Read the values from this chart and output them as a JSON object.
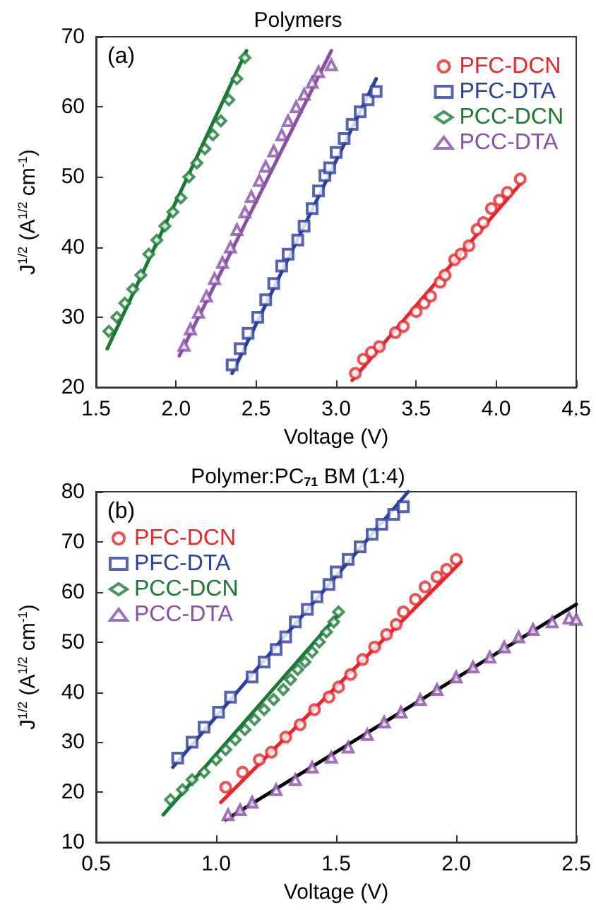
{
  "chart_data": [
    {
      "type": "scatter",
      "title": "Polymers",
      "xlabel": "Voltage (V)",
      "ylabel": "J$^{1/2}$ (A$^{1/2}$ cm$^{-1}$)",
      "annotations": [
        "(a)"
      ],
      "xlim": [
        1.5,
        4.5
      ],
      "xticks": [
        1.5,
        {
          "value": 2,
          "label": "2.0"
        },
        2.5,
        {
          "value": 3,
          "label": "3.0"
        },
        3.5,
        {
          "value": 4,
          "label": "4.0"
        },
        4.5
      ],
      "ylim": [
        20,
        70
      ],
      "yticks": [
        20,
        30,
        40,
        50,
        60,
        70
      ],
      "grid": false,
      "legend": "top right",
      "series": [
        {
          "name": "PFC-DCN",
          "color": "#e8262a",
          "marker": "circle",
          "x": [
            3.12,
            3.17,
            3.22,
            3.27,
            3.37,
            3.42,
            3.5,
            3.55,
            3.59,
            3.65,
            3.68,
            3.74,
            3.78,
            3.83,
            3.88,
            3.92,
            3.97,
            4.02,
            4.07,
            4.15
          ],
          "values": [
            22,
            24,
            25,
            25.8,
            27.8,
            28.7,
            30.8,
            32,
            33,
            35,
            36,
            38.2,
            39,
            40.2,
            42.5,
            43.5,
            45.5,
            46.7,
            47.8,
            49.7
          ]
        },
        {
          "name": "PFC-DTA",
          "color": "#2b3f9e",
          "marker": "square",
          "x": [
            2.35,
            2.4,
            2.45,
            2.51,
            2.56,
            2.61,
            2.66,
            2.7,
            2.76,
            2.8,
            2.85,
            2.89,
            2.93,
            2.96,
            3.0,
            3.05,
            3.1,
            3.15,
            3.2,
            3.25
          ],
          "values": [
            23.2,
            25.5,
            27.7,
            30,
            32.5,
            34.8,
            37.3,
            39,
            41,
            43,
            45.5,
            48,
            50.2,
            51.3,
            53.5,
            55.5,
            57.5,
            59.3,
            61,
            62.2
          ]
        },
        {
          "name": "PCC-DCN",
          "color": "#1a7a34",
          "marker": "diamond",
          "x": [
            1.58,
            1.63,
            1.68,
            1.73,
            1.78,
            1.83,
            1.88,
            1.93,
            1.98,
            2.03,
            2.08,
            2.13,
            2.18,
            2.23,
            2.28,
            2.33,
            2.38,
            2.43
          ],
          "values": [
            28,
            30,
            32,
            34,
            36,
            39,
            41,
            43,
            45,
            47,
            50,
            52,
            54,
            56,
            58,
            61,
            64,
            67
          ]
        },
        {
          "name": "PCC-DTA",
          "color": "#8a4fa8",
          "marker": "triangle",
          "x": [
            2.05,
            2.09,
            2.14,
            2.19,
            2.24,
            2.29,
            2.34,
            2.38,
            2.43,
            2.47,
            2.52,
            2.56,
            2.61,
            2.66,
            2.7,
            2.75,
            2.8,
            2.85,
            2.89,
            2.97
          ],
          "values": [
            26,
            28.3,
            30.7,
            33,
            35.5,
            37.8,
            40,
            42.5,
            45,
            47.2,
            49.5,
            51.5,
            53.7,
            56,
            58,
            60,
            61.8,
            63.5,
            65,
            66
          ]
        },
        {
          "type": "line",
          "color": "#e8262a",
          "marker": "none",
          "x": [
            3.1,
            4.15
          ],
          "values": [
            21,
            49
          ]
        },
        {
          "type": "line",
          "color": "#2b3f9e",
          "marker": "none",
          "x": [
            2.35,
            3.25
          ],
          "values": [
            22,
            64
          ]
        },
        {
          "type": "line",
          "color": "#1a7a34",
          "marker": "none",
          "x": [
            1.57,
            2.44
          ],
          "values": [
            25.5,
            68
          ]
        },
        {
          "type": "line",
          "color": "#8a4fa8",
          "marker": "none",
          "x": [
            2.02,
            2.97
          ],
          "values": [
            24.5,
            68
          ]
        }
      ]
    },
    {
      "type": "scatter",
      "title": "Polymer:PC$_{71}$ BM (1:4)",
      "xlabel": "Voltage (V)",
      "ylabel": "J$^{1/2}$ (A$^{1/2}$ cm$^{-1}$)",
      "annotations": [
        "(b)"
      ],
      "xlim": [
        0.5,
        2.5
      ],
      "xticks": [
        0.5,
        {
          "value": 1,
          "label": "1.0"
        },
        1.5,
        {
          "value": 2,
          "label": "2.0"
        },
        2.5
      ],
      "ylim": [
        10,
        80
      ],
      "yticks": [
        10,
        20,
        30,
        40,
        50,
        60,
        70,
        80
      ],
      "grid": false,
      "legend": "top left",
      "series": [
        {
          "name": "PFC-DCN",
          "color": "#e8262a",
          "marker": "circle",
          "x": [
            1.04,
            1.11,
            1.18,
            1.23,
            1.29,
            1.35,
            1.41,
            1.47,
            1.51,
            1.56,
            1.61,
            1.66,
            1.71,
            1.75,
            1.78,
            1.83,
            1.87,
            1.92,
            1.96,
            2.0
          ],
          "values": [
            21,
            24,
            26.5,
            28,
            31,
            33.5,
            36.5,
            39,
            41,
            43.5,
            46.5,
            49,
            51.5,
            53.5,
            56,
            58.5,
            61,
            63,
            64.5,
            66.5
          ]
        },
        {
          "name": "PFC-DTA",
          "color": "#2b3f9e",
          "marker": "square",
          "x": [
            0.84,
            0.9,
            0.95,
            1.01,
            1.06,
            1.15,
            1.2,
            1.25,
            1.29,
            1.33,
            1.38,
            1.42,
            1.47,
            1.5,
            1.55,
            1.6,
            1.65,
            1.69,
            1.74,
            1.78
          ],
          "values": [
            26.8,
            30,
            33,
            36,
            39,
            43,
            46,
            48.5,
            51,
            54,
            56.5,
            59,
            61.5,
            64,
            66.5,
            69,
            71.5,
            73.5,
            75.5,
            77
          ]
        },
        {
          "name": "PCC-DCN",
          "color": "#1a7a34",
          "marker": "diamond",
          "x": [
            0.81,
            0.86,
            0.9,
            0.95,
            1.0,
            1.04,
            1.08,
            1.12,
            1.16,
            1.2,
            1.24,
            1.28,
            1.31,
            1.34,
            1.37,
            1.4,
            1.43,
            1.46,
            1.49,
            1.51
          ],
          "values": [
            18.5,
            20.5,
            22.5,
            24,
            26.5,
            28.5,
            30.5,
            32.5,
            34.5,
            36.5,
            38.5,
            40.5,
            42.5,
            44.5,
            46,
            48,
            50,
            52,
            54,
            56
          ]
        },
        {
          "name": "PCC-DTA",
          "color": "#8a4fa8",
          "marker": "triangle",
          "x": [
            1.05,
            1.1,
            1.15,
            1.25,
            1.33,
            1.4,
            1.48,
            1.55,
            1.63,
            1.7,
            1.77,
            1.85,
            1.92,
            2.0,
            2.07,
            2.14,
            2.2,
            2.26,
            2.32,
            2.4,
            2.47,
            2.5
          ],
          "values": [
            15.5,
            16.5,
            18,
            20.5,
            22.5,
            25,
            27,
            29,
            31.5,
            34,
            36,
            38.5,
            40.5,
            43,
            45,
            47,
            49,
            51,
            52.5,
            54,
            54.8,
            54.5
          ]
        },
        {
          "type": "line",
          "color": "#e8262a",
          "marker": "none",
          "x": [
            1.02,
            2.02
          ],
          "values": [
            18,
            66
          ]
        },
        {
          "type": "line",
          "color": "#2b3f9e",
          "marker": "none",
          "x": [
            0.82,
            1.8
          ],
          "values": [
            25,
            80
          ]
        },
        {
          "type": "line",
          "color": "#1a7a34",
          "marker": "none",
          "x": [
            0.78,
            1.51
          ],
          "values": [
            15.5,
            55.5
          ]
        },
        {
          "type": "line",
          "color": "#000000",
          "marker": "none",
          "x": [
            1.04,
            2.5
          ],
          "values": [
            14.5,
            57.5
          ]
        }
      ]
    }
  ]
}
